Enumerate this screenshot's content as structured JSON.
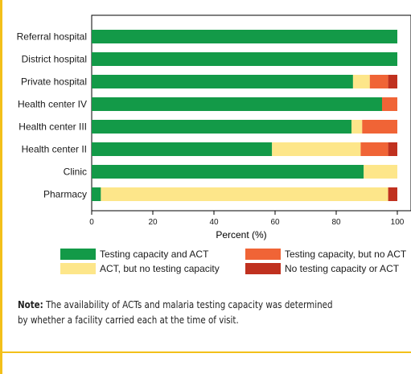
{
  "chart_data": {
    "type": "bar",
    "orientation": "horizontal",
    "stacked": true,
    "title": "",
    "xlabel": "Percent (%)",
    "ylabel": "",
    "xlim": [
      0,
      100
    ],
    "x_ticks": [
      "0",
      "20",
      "40",
      "60",
      "80",
      "100"
    ],
    "grid": false,
    "legend_position": "bottom",
    "categories": [
      "Referral hospital",
      "District hospital",
      "Private hospital",
      "Health center IV",
      "Health center III",
      "Health center II",
      "Clinic",
      "Pharmacy"
    ],
    "series": [
      {
        "name": "Testing capacity and ACT",
        "color": "#139a48",
        "values": [
          100,
          100,
          85.5,
          95,
          85,
          59,
          89,
          3
        ]
      },
      {
        "name": "ACT, but no testing capacity",
        "color": "#fde68a",
        "values": [
          0,
          0,
          5.5,
          0,
          3.5,
          29,
          11,
          94
        ]
      },
      {
        "name": "Testing capacity, but no ACT",
        "color": "#f06436",
        "values": [
          0,
          0,
          6,
          5,
          11.5,
          9,
          0,
          0
        ]
      },
      {
        "name": "No testing capacity or ACT",
        "color": "#c0311f",
        "values": [
          0,
          0,
          3,
          0,
          0,
          3,
          0,
          3
        ]
      }
    ],
    "legend_order": [
      0,
      1,
      2,
      3
    ]
  },
  "note": {
    "label": "Note:",
    "text": " The availability of ACTs and malaria testing capacity was determined by whether a facility carried each at the time of visit."
  }
}
